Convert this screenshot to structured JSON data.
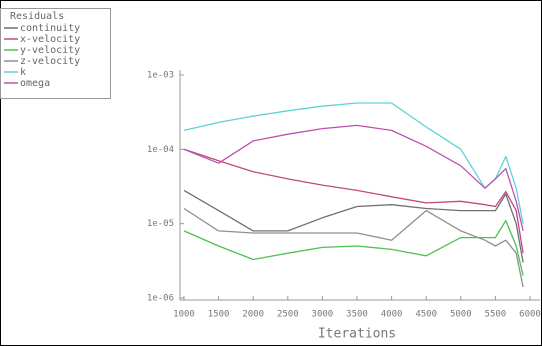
{
  "chart_data": {
    "type": "line",
    "legend_title": "Residuals",
    "xlabel": "Iterations",
    "log_y": true,
    "legend": "top-left",
    "x": [
      1000,
      1500,
      2000,
      2500,
      3000,
      3500,
      4000,
      4500,
      5000,
      5350,
      5500,
      5650,
      5800,
      5900
    ],
    "series": [
      {
        "name": "continuity",
        "color": "#707070",
        "values": [
          2.8e-05,
          1.5e-05,
          8e-06,
          8e-06,
          1.2e-05,
          1.7e-05,
          1.8e-05,
          1.6e-05,
          1.5e-05,
          1.5e-05,
          1.5e-05,
          2.5e-05,
          1e-05,
          3e-06
        ]
      },
      {
        "name": "x-velocity",
        "color": "#c04880",
        "values": [
          0.0001,
          7e-05,
          5e-05,
          4e-05,
          3.3e-05,
          2.8e-05,
          2.3e-05,
          1.9e-05,
          2e-05,
          1.8e-05,
          1.7e-05,
          2.7e-05,
          1.5e-05,
          4e-06
        ]
      },
      {
        "name": "y-velocity",
        "color": "#50c050",
        "values": [
          8e-06,
          5e-06,
          3.3e-06,
          4e-06,
          4.8e-06,
          5e-06,
          4.5e-06,
          3.7e-06,
          6.5e-06,
          6.5e-06,
          6.5e-06,
          1.1e-05,
          5e-06,
          2e-06
        ]
      },
      {
        "name": "z-velocity",
        "color": "#909090",
        "values": [
          1.6e-05,
          8e-06,
          7.5e-06,
          7.5e-06,
          7.5e-06,
          7.5e-06,
          6e-06,
          1.5e-05,
          8e-06,
          6e-06,
          5e-06,
          6e-06,
          4e-06,
          1.4e-06
        ]
      },
      {
        "name": "k",
        "color": "#60d0d8",
        "values": [
          0.00018,
          0.00023,
          0.00028,
          0.00033,
          0.00038,
          0.00042,
          0.00042,
          0.0002,
          0.0001,
          3e-05,
          4e-05,
          8e-05,
          3e-05,
          1e-05
        ]
      },
      {
        "name": "omega",
        "color": "#c050b0",
        "values": [
          0.0001,
          6.5e-05,
          0.00013,
          0.00016,
          0.00019,
          0.00021,
          0.00018,
          0.00011,
          6e-05,
          3e-05,
          4e-05,
          5.5e-05,
          2e-05,
          8e-06
        ]
      }
    ],
    "xlim": [
      1000,
      6000
    ],
    "xticks": [
      1000,
      1500,
      2000,
      2500,
      3000,
      3500,
      4000,
      4500,
      5000,
      5500,
      6000
    ],
    "ylim": [
      1e-06,
      0.001
    ],
    "yticks": [
      {
        "value": 1e-06,
        "label": "1e-06"
      },
      {
        "value": 1e-05,
        "label": "1e-05"
      },
      {
        "value": 0.0001,
        "label": "1e-04"
      },
      {
        "value": 0.001,
        "label": "1e-03"
      }
    ]
  }
}
